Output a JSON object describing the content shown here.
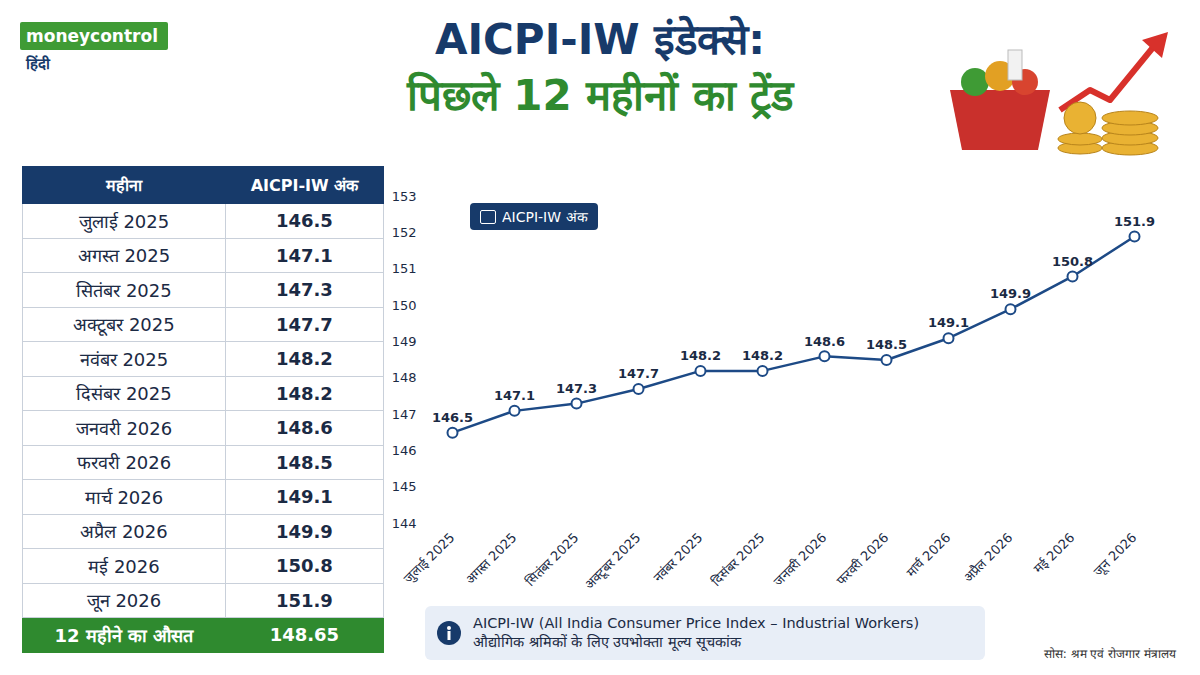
{
  "header": {
    "logo": "moneycontrol",
    "logo_sub": "हिंदी",
    "title_line1": "AICPI-IW इंडेक्से:",
    "title_line2": "पिछले 12 महीनों का ट्रेंड"
  },
  "table": {
    "columns": [
      "महीना",
      "AICPI-IW अंक"
    ],
    "rows": [
      [
        "जुलाई 2025",
        "146.5"
      ],
      [
        "अगस्त 2025",
        "147.1"
      ],
      [
        "सितंबर 2025",
        "147.3"
      ],
      [
        "अक्टूबर 2025",
        "147.7"
      ],
      [
        "नवंबर 2025",
        "148.2"
      ],
      [
        "दिसंबर 2025",
        "148.2"
      ],
      [
        "जनवरी 2026",
        "148.6"
      ],
      [
        "फरवरी 2026",
        "148.5"
      ],
      [
        "मार्च 2026",
        "149.1"
      ],
      [
        "अप्रैल 2026",
        "149.9"
      ],
      [
        "मई 2026",
        "150.8"
      ],
      [
        "जून 2026",
        "151.9"
      ]
    ],
    "footer": [
      "12 महीने का औसत",
      "148.65"
    ]
  },
  "chart_data": {
    "type": "line",
    "categories": [
      "जुलाई 2025",
      "अगस्त 2025",
      "सितंबर 2025",
      "अक्टूबर 2025",
      "नवंबर 2025",
      "दिसंबर 2025",
      "जनवरी 2026",
      "फरवरी 2026",
      "मार्च 2026",
      "अप्रैल 2026",
      "मई 2026",
      "जून 2026"
    ],
    "series": [
      {
        "name": "AICPI-IW अंक",
        "color": "#1d4a86",
        "marker": "circle",
        "values": [
          146.5,
          147.1,
          147.3,
          147.7,
          148.2,
          148.2,
          148.6,
          148.5,
          149.1,
          149.9,
          150.8,
          151.9
        ]
      }
    ],
    "ylim": [
      144,
      153
    ],
    "yticks": [
      144,
      145,
      146,
      147,
      148,
      149,
      150,
      151,
      152,
      153
    ],
    "grid": false,
    "legend": "top-left",
    "data_labels": true
  },
  "info": {
    "line1": "AICPI-IW (All India Consumer Price Index – Industrial Workers)",
    "line2": "औद्योगिक श्रमिकों के लिए उपभोक्ता मूल्य सूचकांक"
  },
  "source": "सोस: श्रम एवं रोजगार मंत्रालय"
}
